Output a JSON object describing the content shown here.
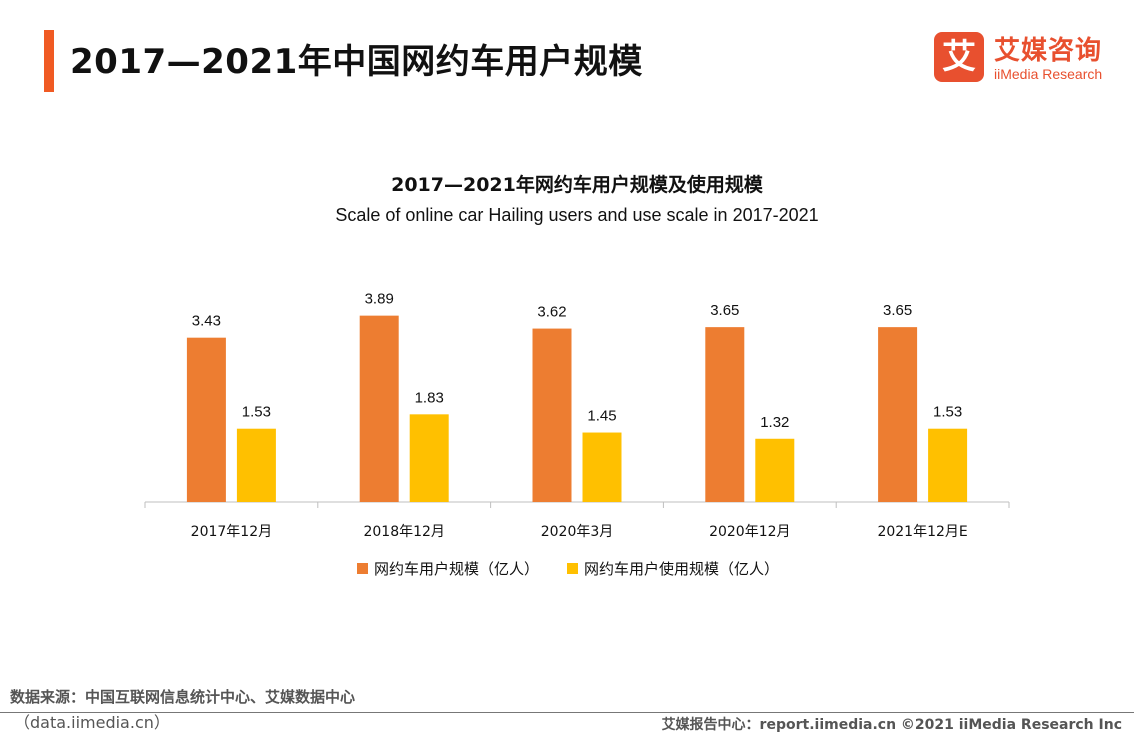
{
  "page_title": "2017—2021年中国网约车用户规模",
  "logo": {
    "cn": "艾媒咨询",
    "en": "iiMedia Research",
    "mark": "艾"
  },
  "colors": {
    "accent": "#F05A23",
    "series1": "#ED7D31",
    "series2": "#FFC000",
    "logo": "#E8502F"
  },
  "chart_data": {
    "type": "bar",
    "title": "2017—2021年网约车用户规模及使用规模",
    "subtitle": "Scale of online car Hailing users and use scale in 2017-2021",
    "categories": [
      "2017年12月",
      "2018年12月",
      "2020年3月",
      "2020年12月",
      "2021年12月E"
    ],
    "series": [
      {
        "name": "网约车用户规模（亿人）",
        "values": [
          3.43,
          3.89,
          3.62,
          3.65,
          3.65
        ],
        "labels": [
          "3.43",
          "3.89",
          "3.62",
          "3.65",
          "3.65"
        ]
      },
      {
        "name": "网约车用户使用规模（亿人）",
        "values": [
          1.53,
          1.83,
          1.45,
          1.32,
          1.53
        ],
        "labels": [
          "1.53",
          "1.83",
          "1.45",
          "1.32",
          "1.53"
        ]
      }
    ],
    "xlabel": "",
    "ylabel": "",
    "ylim": [
      0,
      4.3
    ],
    "legend": "bottom",
    "grid": false
  },
  "source": {
    "label": "数据来源：中国互联网信息统计中心、艾媒数据中心",
    "url": "（data.iimedia.cn）"
  },
  "footer": "艾媒报告中心：report.iimedia.cn  ©2021  iiMedia Research  Inc"
}
